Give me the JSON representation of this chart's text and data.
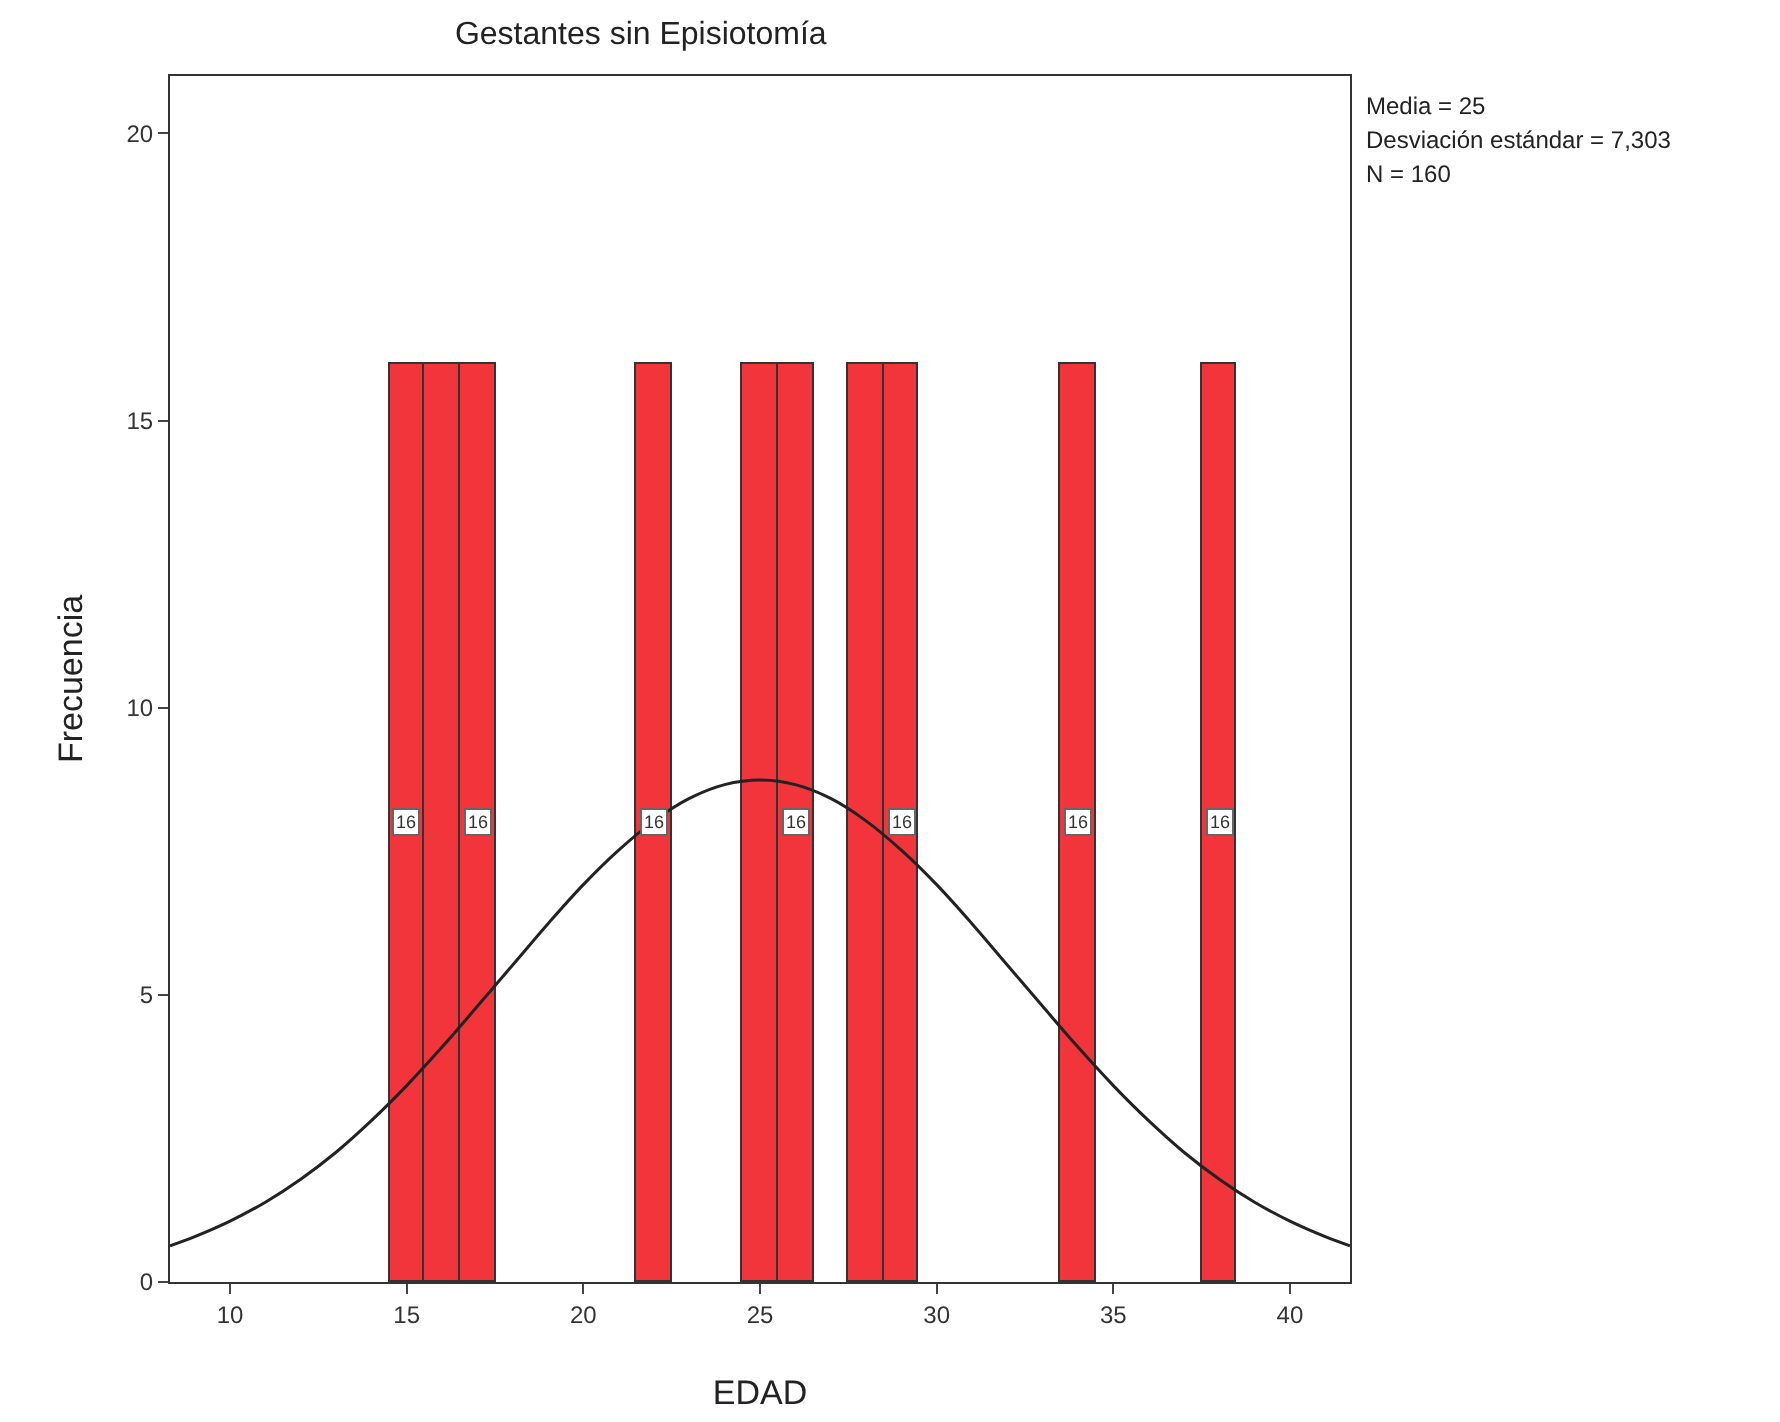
{
  "chart_data": {
    "type": "histogram",
    "title": "Gestantes sin Episiotomía",
    "xlabel": "EDAD",
    "ylabel": "Frecuencia",
    "bins": [
      14.5,
      15.5,
      16.5,
      17.5,
      18.5,
      19.5,
      20.5,
      21.5,
      22.5,
      23.5,
      24.5,
      25.5,
      26.5,
      27.5,
      28.5,
      29.5,
      30.5,
      31.5,
      32.5,
      33.5,
      34.5,
      35.5,
      36.5,
      37.5,
      38.5
    ],
    "values": [
      16,
      16,
      16,
      0,
      0,
      0,
      0,
      16,
      0,
      0,
      16,
      16,
      0,
      16,
      16,
      0,
      0,
      0,
      0,
      16,
      0,
      0,
      0,
      16
    ],
    "value_labels": [
      "16",
      null,
      "16",
      null,
      null,
      null,
      null,
      "16",
      null,
      null,
      null,
      "16",
      null,
      null,
      "16",
      null,
      null,
      null,
      null,
      "16",
      null,
      null,
      null,
      "16"
    ],
    "color": "#f2353a",
    "series": [
      {
        "type": "line",
        "color": "#222222",
        "x": [
          8.3,
          9,
          10,
          11,
          12,
          13,
          14,
          15,
          16,
          17,
          18,
          19,
          20,
          21,
          22,
          23,
          24,
          25,
          26,
          27,
          28,
          29,
          30,
          31,
          32,
          33,
          34,
          35,
          36,
          37,
          38,
          39,
          40,
          41,
          41.7
        ],
        "values": [
          0.63,
          0.79,
          1.06,
          1.39,
          1.79,
          2.26,
          2.81,
          3.42,
          4.09,
          4.8,
          5.52,
          6.24,
          6.92,
          7.52,
          8.03,
          8.42,
          8.66,
          8.74,
          8.66,
          8.42,
          8.03,
          7.52,
          6.92,
          6.24,
          5.52,
          4.8,
          4.09,
          3.42,
          2.81,
          2.26,
          1.79,
          1.39,
          1.06,
          0.79,
          0.63
        ]
      }
    ],
    "xlim": [
      8.3,
      41.7
    ],
    "xticks": [
      10,
      15,
      20,
      25,
      30,
      35,
      40
    ],
    "ylim": [
      0,
      21
    ],
    "yticks": [
      0,
      5,
      10,
      15,
      20
    ],
    "grid": false,
    "annotations": [
      "Media = 25",
      "Desviación estándar = 7,303",
      "N = 160"
    ]
  }
}
